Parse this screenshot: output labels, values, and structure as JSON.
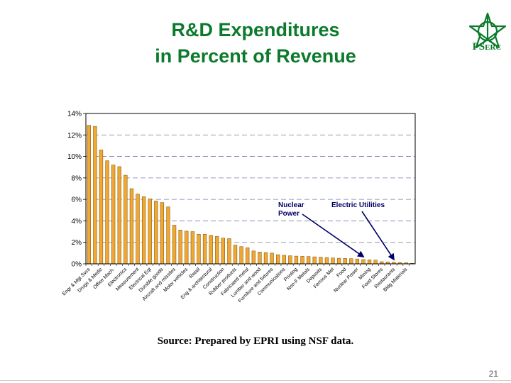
{
  "slide": {
    "title_line1": "R&D Expenditures",
    "title_line2": "in Percent of Revenue",
    "logo_text_ps": "PS",
    "logo_text_erc": "ERC",
    "source": "Source: Prepared by EPRI using NSF data.",
    "page_number": "21"
  },
  "colors": {
    "title": "#0c7a2c",
    "bar_fill": "#f0a830",
    "bar_stroke": "#8a5a10",
    "annotation": "#000066"
  },
  "chart_data": {
    "type": "bar",
    "title": "",
    "xlabel": "",
    "ylabel": "",
    "ylim": [
      0,
      14
    ],
    "y_ticks": [
      "0%",
      "2%",
      "4%",
      "6%",
      "8%",
      "10%",
      "12%",
      "14%"
    ],
    "grid": "horizontal-dashed",
    "legend": "none",
    "unit": "%",
    "categories": [
      "Engr & Mgt Svcs",
      "",
      "Drugs & Medic",
      "",
      "Office Mach.",
      "",
      "Electronics",
      "",
      "Measurement",
      "",
      "Electrical Eqt",
      "",
      "Durable goods",
      "",
      "Aircraft and missiles",
      "",
      "Motor vehicles",
      "",
      "Retail",
      "",
      "Eng & architectural",
      "",
      "Construction",
      "",
      "Rubber products",
      "",
      "Fabricated metal",
      "",
      "Lumber and wood",
      "",
      "Furniture and fixtures",
      "",
      "Communications",
      "",
      "Printing",
      "",
      "Non-F Metals",
      "",
      "Deposits",
      "",
      "Ferrous Met",
      "",
      "Food",
      "",
      "Nuclear Power",
      "",
      "Mining",
      "",
      "Food Stores",
      "",
      "Restaurants",
      "",
      "Bldg Materials",
      ""
    ],
    "values": [
      12.9,
      12.8,
      10.6,
      9.6,
      9.2,
      9.05,
      8.25,
      7.0,
      6.5,
      6.25,
      6.05,
      5.85,
      5.7,
      5.3,
      3.6,
      3.15,
      3.05,
      3.0,
      2.75,
      2.75,
      2.65,
      2.55,
      2.4,
      2.35,
      1.75,
      1.6,
      1.5,
      1.2,
      1.1,
      1.05,
      1.0,
      0.85,
      0.8,
      0.75,
      0.72,
      0.7,
      0.68,
      0.65,
      0.62,
      0.58,
      0.55,
      0.52,
      0.5,
      0.48,
      0.45,
      0.4,
      0.38,
      0.35,
      0.2,
      0.18,
      0.15,
      0.12,
      0.1,
      0.05
    ],
    "annotations": [
      {
        "lines": [
          "Nuclear",
          "Power"
        ],
        "points_to_index": 45
      },
      {
        "lines": [
          "Electric Utilities"
        ],
        "points_to_index": 50
      }
    ]
  }
}
